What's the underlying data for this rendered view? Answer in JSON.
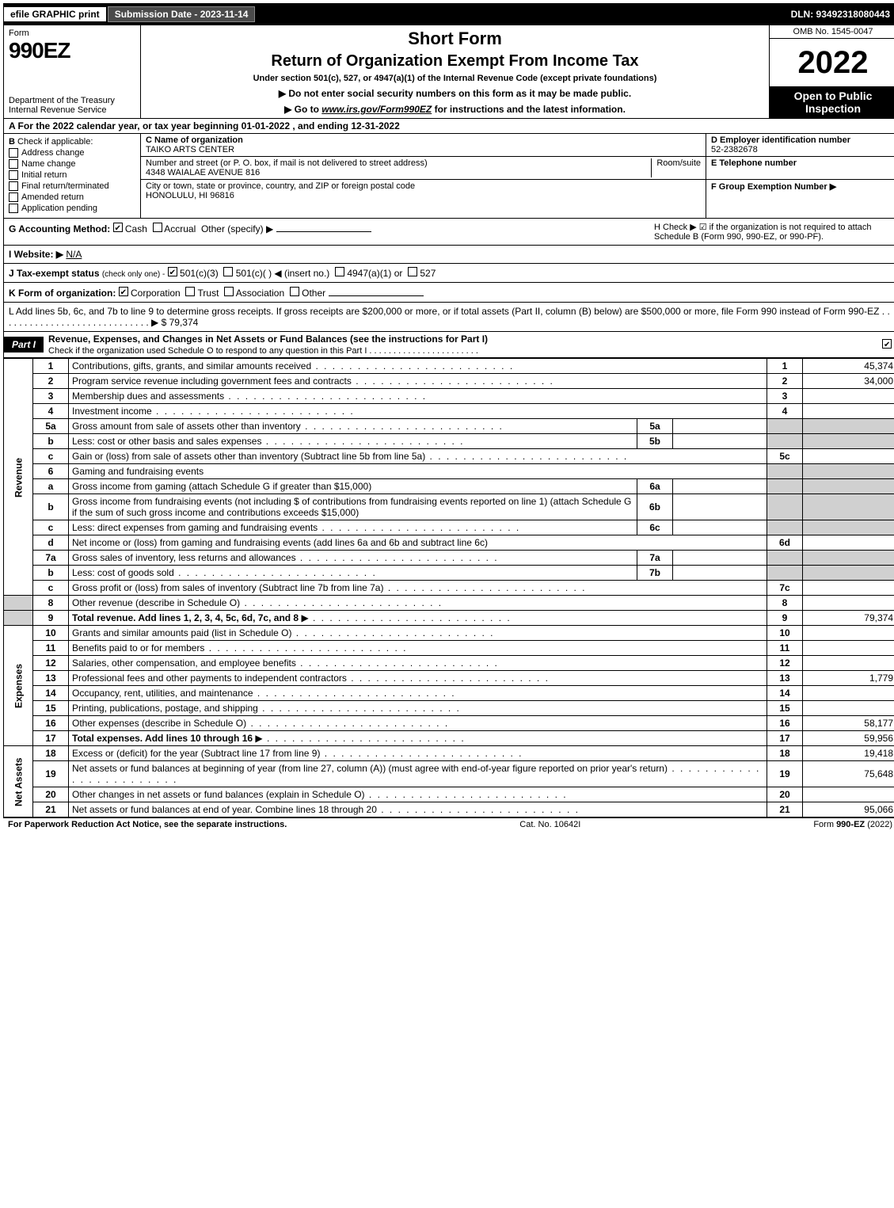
{
  "topbar": {
    "efile": "efile GRAPHIC print",
    "subdate_label": "Submission Date - 2023-11-14",
    "dln": "DLN: 93492318080443"
  },
  "header": {
    "form_word": "Form",
    "form_num": "990EZ",
    "dept": "Department of the Treasury\nInternal Revenue Service",
    "short_form": "Short Form",
    "title": "Return of Organization Exempt From Income Tax",
    "subsection": "Under section 501(c), 527, or 4947(a)(1) of the Internal Revenue Code (except private foundations)",
    "no_ssn": "▶ Do not enter social security numbers on this form as it may be made public.",
    "goto_pre": "▶ Go to ",
    "goto_link": "www.irs.gov/Form990EZ",
    "goto_post": " for instructions and the latest information.",
    "omb": "OMB No. 1545-0047",
    "year": "2022",
    "open": "Open to Public Inspection"
  },
  "section_a": "A  For the 2022 calendar year, or tax year beginning 01-01-2022 , and ending 12-31-2022",
  "section_b": {
    "label": "B",
    "check_if": "Check if applicable:",
    "items": [
      "Address change",
      "Name change",
      "Initial return",
      "Final return/terminated",
      "Amended return",
      "Application pending"
    ]
  },
  "section_c": {
    "name_label": "C Name of organization",
    "name": "TAIKO ARTS CENTER",
    "street_label": "Number and street (or P. O. box, if mail is not delivered to street address)",
    "room_label": "Room/suite",
    "street": "4348 WAIALAE AVENUE 816",
    "city_label": "City or town, state or province, country, and ZIP or foreign postal code",
    "city": "HONOLULU, HI  96816"
  },
  "section_d": {
    "ein_label": "D Employer identification number",
    "ein": "52-2382678",
    "tel_label": "E Telephone number",
    "group_label": "F Group Exemption Number  ▶"
  },
  "mid": {
    "g_label": "G Accounting Method:",
    "g_cash": "Cash",
    "g_accrual": "Accrual",
    "g_other": "Other (specify) ▶",
    "h_text": "H  Check ▶ ☑ if the organization is not required to attach Schedule B (Form 990, 990-EZ, or 990-PF).",
    "i_label": "I Website: ▶",
    "i_val": "N/A",
    "j_label": "J Tax-exempt status",
    "j_sub": "(check only one) -",
    "j_501c3": "501(c)(3)",
    "j_501c": "501(c)( ) ◀ (insert no.)",
    "j_4947": "4947(a)(1) or",
    "j_527": "527",
    "k_label": "K Form of organization:",
    "k_corp": "Corporation",
    "k_trust": "Trust",
    "k_assoc": "Association",
    "k_other": "Other",
    "l_text_pre": "L Add lines 5b, 6c, and 7b to line 9 to determine gross receipts. If gross receipts are $200,000 or more, or if total assets (Part II, column (B) below) are $500,000 or more, file Form 990 instead of Form 990-EZ",
    "l_dots": " . . . . . . . . . . . . . . . . . . . . . . . . . . . . . ▶ $ ",
    "l_amount": "79,374"
  },
  "part1": {
    "label": "Part I",
    "title": "Revenue, Expenses, and Changes in Net Assets or Fund Balances (see the instructions for Part I)",
    "check_line": "Check if the organization used Schedule O to respond to any question in this Part I . . . . . . . . . . . . . . . . . . . . . . ."
  },
  "vlabels": {
    "rev": "Revenue",
    "exp": "Expenses",
    "na": "Net Assets"
  },
  "lines": {
    "l1": {
      "n": "1",
      "d": "Contributions, gifts, grants, and similar amounts received",
      "r": "1",
      "a": "45,374"
    },
    "l2": {
      "n": "2",
      "d": "Program service revenue including government fees and contracts",
      "r": "2",
      "a": "34,000"
    },
    "l3": {
      "n": "3",
      "d": "Membership dues and assessments",
      "r": "3",
      "a": ""
    },
    "l4": {
      "n": "4",
      "d": "Investment income",
      "r": "4",
      "a": ""
    },
    "l5a": {
      "n": "5a",
      "d": "Gross amount from sale of assets other than inventory",
      "s": "5a"
    },
    "l5b": {
      "n": "b",
      "d": "Less: cost or other basis and sales expenses",
      "s": "5b"
    },
    "l5c": {
      "n": "c",
      "d": "Gain or (loss) from sale of assets other than inventory (Subtract line 5b from line 5a)",
      "r": "5c",
      "a": ""
    },
    "l6": {
      "n": "6",
      "d": "Gaming and fundraising events"
    },
    "l6a": {
      "n": "a",
      "d": "Gross income from gaming (attach Schedule G if greater than $15,000)",
      "s": "6a"
    },
    "l6b": {
      "n": "b",
      "d": "Gross income from fundraising events (not including $                    of contributions from fundraising events reported on line 1) (attach Schedule G if the sum of such gross income and contributions exceeds $15,000)",
      "s": "6b"
    },
    "l6c": {
      "n": "c",
      "d": "Less: direct expenses from gaming and fundraising events",
      "s": "6c"
    },
    "l6d": {
      "n": "d",
      "d": "Net income or (loss) from gaming and fundraising events (add lines 6a and 6b and subtract line 6c)",
      "r": "6d",
      "a": ""
    },
    "l7a": {
      "n": "7a",
      "d": "Gross sales of inventory, less returns and allowances",
      "s": "7a"
    },
    "l7b": {
      "n": "b",
      "d": "Less: cost of goods sold",
      "s": "7b"
    },
    "l7c": {
      "n": "c",
      "d": "Gross profit or (loss) from sales of inventory (Subtract line 7b from line 7a)",
      "r": "7c",
      "a": ""
    },
    "l8": {
      "n": "8",
      "d": "Other revenue (describe in Schedule O)",
      "r": "8",
      "a": ""
    },
    "l9": {
      "n": "9",
      "d": "Total revenue. Add lines 1, 2, 3, 4, 5c, 6d, 7c, and 8",
      "r": "9",
      "a": "79,374"
    },
    "l10": {
      "n": "10",
      "d": "Grants and similar amounts paid (list in Schedule O)",
      "r": "10",
      "a": ""
    },
    "l11": {
      "n": "11",
      "d": "Benefits paid to or for members",
      "r": "11",
      "a": ""
    },
    "l12": {
      "n": "12",
      "d": "Salaries, other compensation, and employee benefits",
      "r": "12",
      "a": ""
    },
    "l13": {
      "n": "13",
      "d": "Professional fees and other payments to independent contractors",
      "r": "13",
      "a": "1,779"
    },
    "l14": {
      "n": "14",
      "d": "Occupancy, rent, utilities, and maintenance",
      "r": "14",
      "a": ""
    },
    "l15": {
      "n": "15",
      "d": "Printing, publications, postage, and shipping",
      "r": "15",
      "a": ""
    },
    "l16": {
      "n": "16",
      "d": "Other expenses (describe in Schedule O)",
      "r": "16",
      "a": "58,177"
    },
    "l17": {
      "n": "17",
      "d": "Total expenses. Add lines 10 through 16",
      "r": "17",
      "a": "59,956"
    },
    "l18": {
      "n": "18",
      "d": "Excess or (deficit) for the year (Subtract line 17 from line 9)",
      "r": "18",
      "a": "19,418"
    },
    "l19": {
      "n": "19",
      "d": "Net assets or fund balances at beginning of year (from line 27, column (A)) (must agree with end-of-year figure reported on prior year's return)",
      "r": "19",
      "a": "75,648"
    },
    "l20": {
      "n": "20",
      "d": "Other changes in net assets or fund balances (explain in Schedule O)",
      "r": "20",
      "a": ""
    },
    "l21": {
      "n": "21",
      "d": "Net assets or fund balances at end of year. Combine lines 18 through 20",
      "r": "21",
      "a": "95,066"
    }
  },
  "footer": {
    "left": "For Paperwork Reduction Act Notice, see the separate instructions.",
    "mid": "Cat. No. 10642I",
    "right_pre": "Form ",
    "right_form": "990-EZ",
    "right_post": " (2022)"
  }
}
